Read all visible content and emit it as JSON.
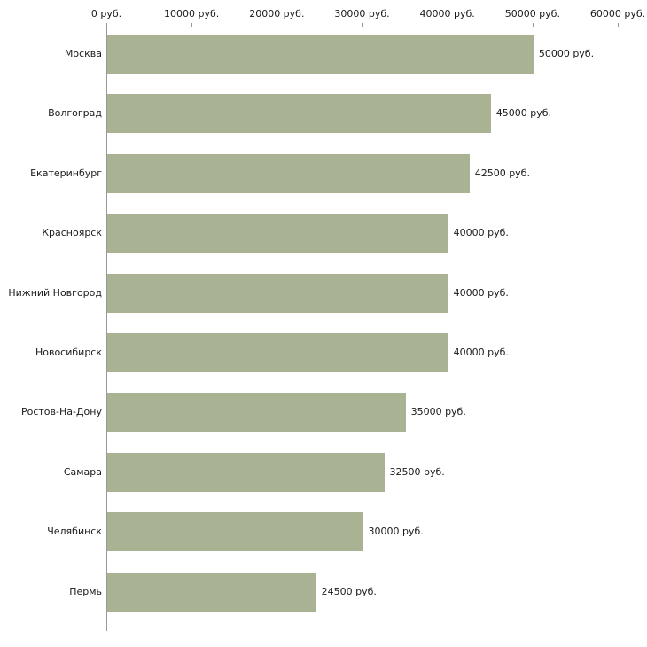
{
  "chart_data": {
    "type": "bar",
    "orientation": "horizontal",
    "title": "",
    "xlabel": "",
    "ylabel": "",
    "grid": false,
    "legend": false,
    "xlim": [
      0,
      60000
    ],
    "x_ticks": [
      0,
      10000,
      20000,
      30000,
      40000,
      50000,
      60000
    ],
    "x_tick_labels": [
      "0 руб.",
      "10000 руб.",
      "20000 руб.",
      "30000 руб.",
      "40000 руб.",
      "50000 руб.",
      "60000 руб."
    ],
    "categories": [
      "Москва",
      "Волгоград",
      "Екатеринбург",
      "Красноярск",
      "Нижний Новгород",
      "Новосибирск",
      "Ростов-На-Дону",
      "Самара",
      "Челябинск",
      "Пермь"
    ],
    "values": [
      50000,
      45000,
      42500,
      40000,
      40000,
      40000,
      35000,
      32500,
      30000,
      24500
    ],
    "value_labels": [
      "50000 руб.",
      "45000 руб.",
      "42500 руб.",
      "40000 руб.",
      "40000 руб.",
      "40000 руб.",
      "35000 руб.",
      "32500 руб.",
      "30000 руб.",
      "24500 руб."
    ],
    "bar_color": "#aab294",
    "axis_color": "#999999",
    "text_color": "#1a1a1a"
  }
}
